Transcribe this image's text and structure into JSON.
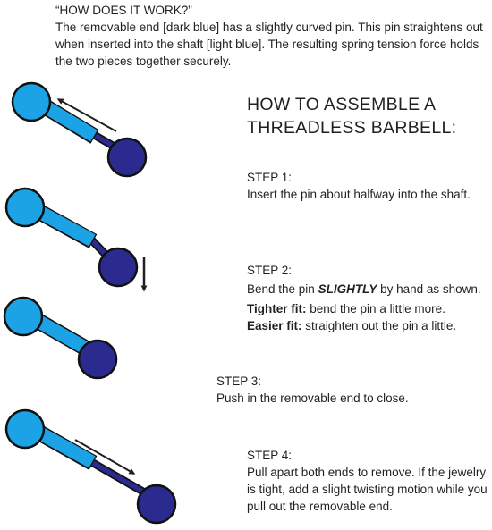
{
  "intro": {
    "title": "“HOW DOES IT WORK?”",
    "text": "The removable end [dark blue] has a slightly curved pin. This pin straightens out when inserted into the shaft [light blue]. The resulting spring tension force holds the two pieces together securely."
  },
  "heading": {
    "line1": "HOW TO ASSEMBLE A",
    "line2": "THREADLESS BARBELL:"
  },
  "steps": [
    {
      "title": "STEP 1:",
      "text": "Insert the pin about halfway into the shaft."
    },
    {
      "title": "STEP 2:",
      "text_before": "Bend the pin ",
      "emphasis": "SLIGHTLY",
      "text_after": " by hand as shown.",
      "tighter_label": "Tighter fit:",
      "tighter_text": " bend the pin a little more.",
      "easier_label": "Easier fit:",
      "easier_text": " straighten out the pin a little."
    },
    {
      "title": "STEP 3:",
      "text": "Push in the removable end to close."
    },
    {
      "title": "STEP 4:",
      "text": "Pull apart both ends to remove. If the jewelry is tight, add a slight twisting motion while you pull out the removable end."
    }
  ],
  "colors": {
    "shaft": "#1ba3e6",
    "removable_end": "#2a2a8f",
    "outline": "#111111",
    "arrow": "#231f20"
  }
}
